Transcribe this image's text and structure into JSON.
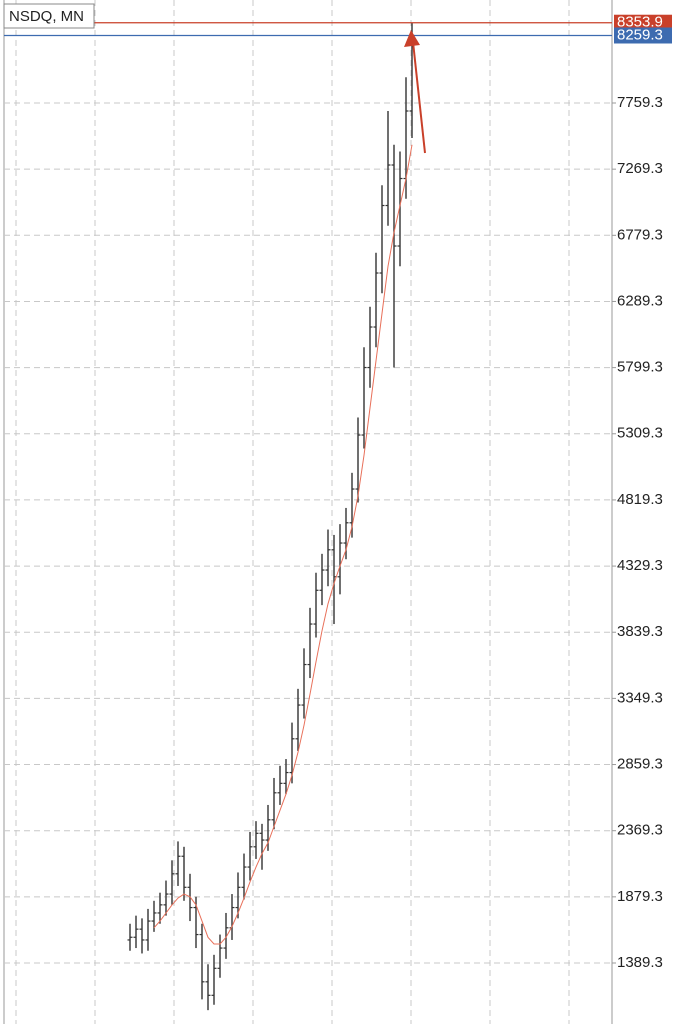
{
  "chart_data": {
    "type": "ohlc",
    "title": "NSDQ, MN",
    "open": [
      1560,
      1580,
      1640,
      1560,
      1700,
      1760,
      1820,
      1900,
      2050,
      2180,
      1950,
      1800,
      1600,
      1250,
      1150,
      1350,
      1500,
      1650,
      1800,
      1950,
      2100,
      2250,
      2350,
      2300,
      2450,
      2650,
      2720,
      2800,
      3050,
      3300,
      3600,
      3900,
      4150,
      4300,
      4450,
      4250,
      4500,
      4650,
      4900,
      5300,
      5800,
      6100,
      6500,
      7000,
      7300,
      6700,
      7200,
      7700
    ],
    "high": [
      1680,
      1740,
      1720,
      1790,
      1850,
      1910,
      2000,
      2150,
      2290,
      2250,
      2050,
      1880,
      1680,
      1380,
      1450,
      1600,
      1760,
      1900,
      2060,
      2200,
      2360,
      2440,
      2420,
      2560,
      2760,
      2850,
      2900,
      3170,
      3420,
      3720,
      4020,
      4280,
      4420,
      4600,
      4560,
      4640,
      4760,
      5020,
      5430,
      5950,
      6250,
      6650,
      7150,
      7700,
      7450,
      7400,
      7950,
      8353.9
    ],
    "low": [
      1480,
      1500,
      1460,
      1480,
      1620,
      1680,
      1740,
      1820,
      1960,
      1850,
      1700,
      1500,
      1120,
      1040,
      1080,
      1280,
      1420,
      1560,
      1720,
      1860,
      2000,
      2160,
      2080,
      2220,
      2380,
      2560,
      2640,
      2720,
      2960,
      3200,
      3500,
      3800,
      4040,
      4180,
      3900,
      4120,
      4380,
      4540,
      4800,
      5200,
      5650,
      5950,
      6350,
      6850,
      5800,
      6550,
      7050,
      7500
    ],
    "close": [
      1580,
      1640,
      1560,
      1700,
      1760,
      1820,
      1900,
      2050,
      2180,
      1950,
      1800,
      1600,
      1250,
      1150,
      1350,
      1500,
      1650,
      1800,
      1950,
      2100,
      2250,
      2350,
      2300,
      2450,
      2650,
      2720,
      2800,
      3050,
      3300,
      3600,
      3900,
      4150,
      4300,
      4450,
      4250,
      4500,
      4650,
      4900,
      5300,
      5800,
      6100,
      6500,
      7000,
      7300,
      6700,
      7200,
      7700,
      8259.3
    ],
    "color": "#333333",
    "ma": {
      "color": "#e8705a",
      "values": [
        null,
        null,
        null,
        null,
        1650,
        1700,
        1760,
        1820,
        1870,
        1900,
        1880,
        1820,
        1700,
        1580,
        1530,
        1530,
        1580,
        1660,
        1760,
        1870,
        1990,
        2100,
        2200,
        2280,
        2400,
        2520,
        2640,
        2780,
        2950,
        3150,
        3380,
        3620,
        3850,
        4050,
        4200,
        4330,
        4450,
        4620,
        4850,
        5150,
        5500,
        5850,
        6200,
        6550,
        6800,
        7000,
        7200,
        7450
      ]
    },
    "price_lines": [
      {
        "value": 8353.9,
        "color": "#c9402a"
      },
      {
        "value": 8259.3,
        "color": "#3d6bb0"
      }
    ],
    "ylim": [
      937.5,
      8522.2
    ],
    "yticks": [
      1389.3,
      1879.3,
      2369.3,
      2859.3,
      3349.3,
      3839.3,
      4329.3,
      4819.3,
      5309.3,
      5799.3,
      6289.3,
      6779.3,
      7269.3,
      7759.3
    ],
    "grid": true
  }
}
